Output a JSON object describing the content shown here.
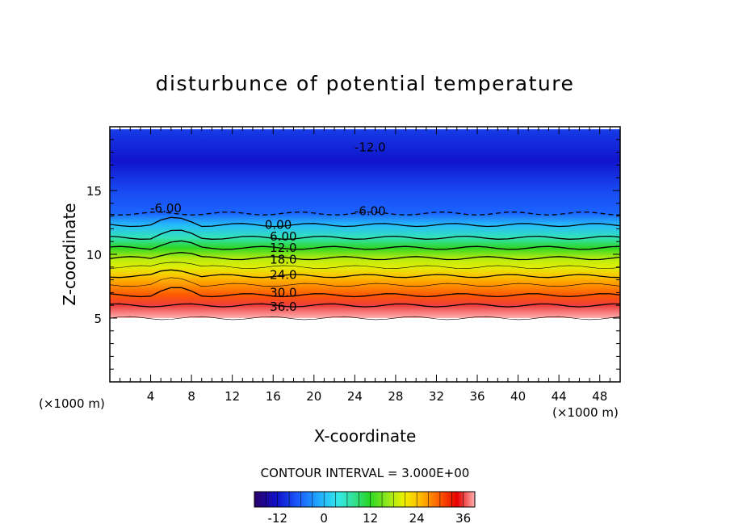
{
  "chart_data": {
    "type": "heatmap",
    "title": "disturbunce of potential temperature",
    "xlabel": "X-coordinate",
    "ylabel": "Z-coordinate",
    "x_unit_left": "(×1000 m)",
    "x_unit_right": "(×1000 m)",
    "xlim": [
      0,
      50
    ],
    "ylim": [
      0,
      20
    ],
    "x_ticks": [
      "4",
      "8",
      "12",
      "16",
      "20",
      "24",
      "28",
      "32",
      "36",
      "40",
      "44",
      "48"
    ],
    "y_ticks": [
      "5",
      "10",
      "15"
    ],
    "contour_interval_text": "CONTOUR INTERVAL = 3.000E+00",
    "colorbar": {
      "range": [
        -18,
        39
      ],
      "ticks": [
        "-12",
        "0",
        "12",
        "24",
        "36"
      ]
    },
    "contour_labels": [
      "-12.0",
      "-6.00",
      "-6.00",
      "0.00",
      "6.00",
      "12.0",
      "18.0",
      "24.0",
      "30.0",
      "36.0"
    ],
    "vertical_profile": [
      {
        "z": 5.0,
        "value": 39
      },
      {
        "z": 6.0,
        "value": 36
      },
      {
        "z": 6.8,
        "value": 30
      },
      {
        "z": 7.6,
        "value": 27
      },
      {
        "z": 8.3,
        "value": 24
      },
      {
        "z": 9.0,
        "value": 20
      },
      {
        "z": 9.7,
        "value": 18
      },
      {
        "z": 10.5,
        "value": 12
      },
      {
        "z": 11.3,
        "value": 6
      },
      {
        "z": 12.3,
        "value": 0
      },
      {
        "z": 13.2,
        "value": -6
      },
      {
        "z": 15.0,
        "value": -8
      },
      {
        "z": 17.3,
        "value": -12
      },
      {
        "z": 19.8,
        "value": -9
      }
    ],
    "grid": false,
    "legend": "colorbar-bottom"
  }
}
